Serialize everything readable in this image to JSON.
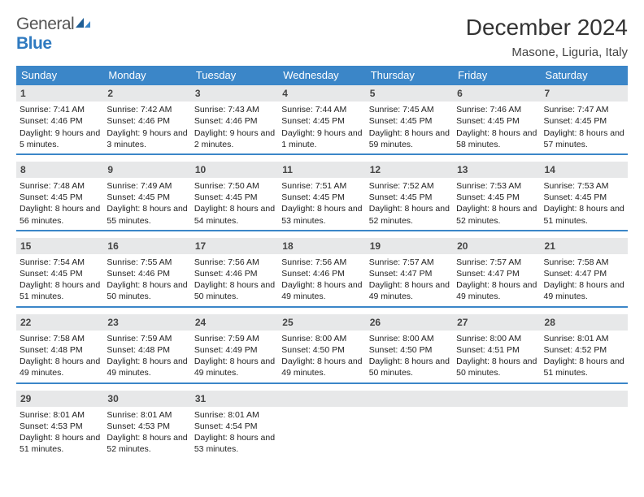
{
  "logo": {
    "text1": "General",
    "text2": "Blue"
  },
  "title": "December 2024",
  "location": "Masone, Liguria, Italy",
  "colors": {
    "header_bg": "#3b86c8",
    "numbar_bg": "#e7e8e9",
    "rule": "#3b86c8"
  },
  "daysOfWeek": [
    "Sunday",
    "Monday",
    "Tuesday",
    "Wednesday",
    "Thursday",
    "Friday",
    "Saturday"
  ],
  "weeks": [
    [
      {
        "n": "1",
        "sunrise": "7:41 AM",
        "sunset": "4:46 PM",
        "daylight": "9 hours and 5 minutes."
      },
      {
        "n": "2",
        "sunrise": "7:42 AM",
        "sunset": "4:46 PM",
        "daylight": "9 hours and 3 minutes."
      },
      {
        "n": "3",
        "sunrise": "7:43 AM",
        "sunset": "4:46 PM",
        "daylight": "9 hours and 2 minutes."
      },
      {
        "n": "4",
        "sunrise": "7:44 AM",
        "sunset": "4:45 PM",
        "daylight": "9 hours and 1 minute."
      },
      {
        "n": "5",
        "sunrise": "7:45 AM",
        "sunset": "4:45 PM",
        "daylight": "8 hours and 59 minutes."
      },
      {
        "n": "6",
        "sunrise": "7:46 AM",
        "sunset": "4:45 PM",
        "daylight": "8 hours and 58 minutes."
      },
      {
        "n": "7",
        "sunrise": "7:47 AM",
        "sunset": "4:45 PM",
        "daylight": "8 hours and 57 minutes."
      }
    ],
    [
      {
        "n": "8",
        "sunrise": "7:48 AM",
        "sunset": "4:45 PM",
        "daylight": "8 hours and 56 minutes."
      },
      {
        "n": "9",
        "sunrise": "7:49 AM",
        "sunset": "4:45 PM",
        "daylight": "8 hours and 55 minutes."
      },
      {
        "n": "10",
        "sunrise": "7:50 AM",
        "sunset": "4:45 PM",
        "daylight": "8 hours and 54 minutes."
      },
      {
        "n": "11",
        "sunrise": "7:51 AM",
        "sunset": "4:45 PM",
        "daylight": "8 hours and 53 minutes."
      },
      {
        "n": "12",
        "sunrise": "7:52 AM",
        "sunset": "4:45 PM",
        "daylight": "8 hours and 52 minutes."
      },
      {
        "n": "13",
        "sunrise": "7:53 AM",
        "sunset": "4:45 PM",
        "daylight": "8 hours and 52 minutes."
      },
      {
        "n": "14",
        "sunrise": "7:53 AM",
        "sunset": "4:45 PM",
        "daylight": "8 hours and 51 minutes."
      }
    ],
    [
      {
        "n": "15",
        "sunrise": "7:54 AM",
        "sunset": "4:45 PM",
        "daylight": "8 hours and 51 minutes."
      },
      {
        "n": "16",
        "sunrise": "7:55 AM",
        "sunset": "4:46 PM",
        "daylight": "8 hours and 50 minutes."
      },
      {
        "n": "17",
        "sunrise": "7:56 AM",
        "sunset": "4:46 PM",
        "daylight": "8 hours and 50 minutes."
      },
      {
        "n": "18",
        "sunrise": "7:56 AM",
        "sunset": "4:46 PM",
        "daylight": "8 hours and 49 minutes."
      },
      {
        "n": "19",
        "sunrise": "7:57 AM",
        "sunset": "4:47 PM",
        "daylight": "8 hours and 49 minutes."
      },
      {
        "n": "20",
        "sunrise": "7:57 AM",
        "sunset": "4:47 PM",
        "daylight": "8 hours and 49 minutes."
      },
      {
        "n": "21",
        "sunrise": "7:58 AM",
        "sunset": "4:47 PM",
        "daylight": "8 hours and 49 minutes."
      }
    ],
    [
      {
        "n": "22",
        "sunrise": "7:58 AM",
        "sunset": "4:48 PM",
        "daylight": "8 hours and 49 minutes."
      },
      {
        "n": "23",
        "sunrise": "7:59 AM",
        "sunset": "4:48 PM",
        "daylight": "8 hours and 49 minutes."
      },
      {
        "n": "24",
        "sunrise": "7:59 AM",
        "sunset": "4:49 PM",
        "daylight": "8 hours and 49 minutes."
      },
      {
        "n": "25",
        "sunrise": "8:00 AM",
        "sunset": "4:50 PM",
        "daylight": "8 hours and 49 minutes."
      },
      {
        "n": "26",
        "sunrise": "8:00 AM",
        "sunset": "4:50 PM",
        "daylight": "8 hours and 50 minutes."
      },
      {
        "n": "27",
        "sunrise": "8:00 AM",
        "sunset": "4:51 PM",
        "daylight": "8 hours and 50 minutes."
      },
      {
        "n": "28",
        "sunrise": "8:01 AM",
        "sunset": "4:52 PM",
        "daylight": "8 hours and 51 minutes."
      }
    ],
    [
      {
        "n": "29",
        "sunrise": "8:01 AM",
        "sunset": "4:53 PM",
        "daylight": "8 hours and 51 minutes."
      },
      {
        "n": "30",
        "sunrise": "8:01 AM",
        "sunset": "4:53 PM",
        "daylight": "8 hours and 52 minutes."
      },
      {
        "n": "31",
        "sunrise": "8:01 AM",
        "sunset": "4:54 PM",
        "daylight": "8 hours and 53 minutes."
      },
      null,
      null,
      null,
      null
    ]
  ]
}
